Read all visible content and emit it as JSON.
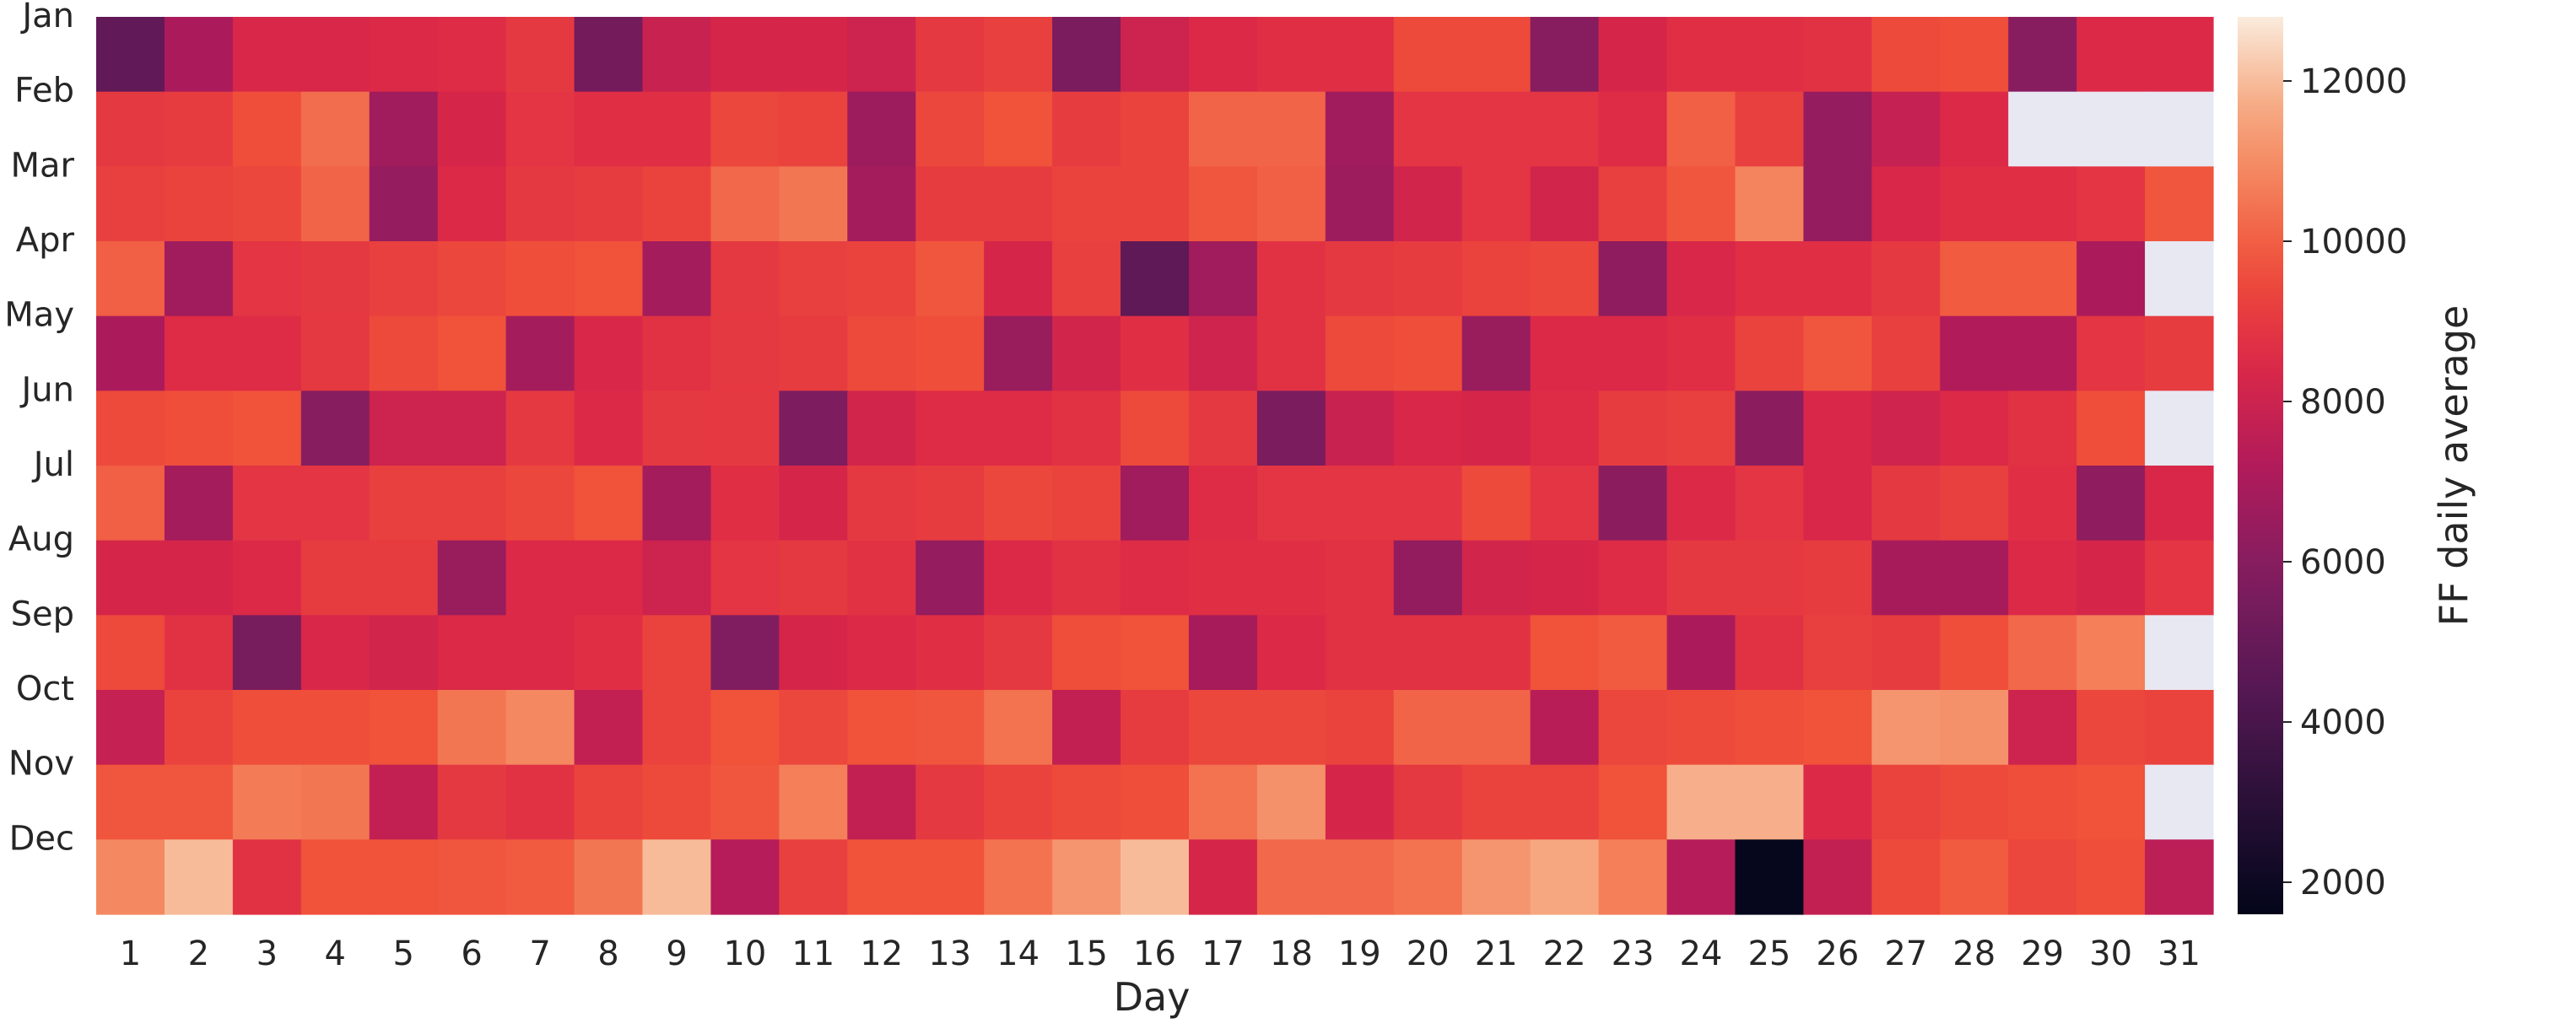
{
  "chart_data": {
    "type": "heatmap",
    "title": "",
    "xlabel": "Day",
    "ylabel": "",
    "colorbar_label": "FF daily average",
    "colorbar_ticks": [
      2000,
      4000,
      6000,
      8000,
      10000,
      12000
    ],
    "value_range": [
      1600,
      12800
    ],
    "missing_color": "#e8e8f2",
    "colormap": "rocket",
    "y_categories": [
      "Jan",
      "Feb",
      "Mar",
      "Apr",
      "May",
      "Jun",
      "Jul",
      "Aug",
      "Sep",
      "Oct",
      "Nov",
      "Dec"
    ],
    "x_categories": [
      "1",
      "2",
      "3",
      "4",
      "5",
      "6",
      "7",
      "8",
      "9",
      "10",
      "11",
      "12",
      "13",
      "14",
      "15",
      "16",
      "17",
      "18",
      "19",
      "20",
      "21",
      "22",
      "23",
      "24",
      "25",
      "26",
      "27",
      "28",
      "29",
      "30",
      "31"
    ],
    "values": [
      [
        4800,
        7000,
        8400,
        8400,
        8500,
        8600,
        9000,
        5400,
        7900,
        8300,
        8300,
        8000,
        9000,
        9200,
        5600,
        8000,
        8500,
        8700,
        8700,
        9500,
        9500,
        6000,
        8300,
        8700,
        8700,
        8800,
        9500,
        9600,
        6000,
        8500,
        8500
      ],
      [
        9000,
        9100,
        9600,
        10300,
        6700,
        8300,
        8900,
        8700,
        8700,
        9400,
        9300,
        6600,
        9400,
        9700,
        9100,
        9300,
        10100,
        10100,
        6700,
        8900,
        8900,
        8900,
        8600,
        10000,
        9200,
        6400,
        7800,
        8500,
        null,
        null,
        null
      ],
      [
        9200,
        9300,
        9400,
        10100,
        6400,
        8500,
        9000,
        9100,
        9300,
        10200,
        10500,
        6800,
        9100,
        9100,
        9300,
        9300,
        9800,
        10000,
        6600,
        8200,
        8900,
        8200,
        9200,
        9800,
        10800,
        6400,
        8400,
        8700,
        8700,
        8900,
        9800
      ],
      [
        10000,
        6700,
        8900,
        9000,
        9200,
        9400,
        9600,
        9700,
        6800,
        9000,
        9200,
        9300,
        9800,
        8300,
        9200,
        4700,
        6700,
        8800,
        9000,
        9100,
        9300,
        9400,
        6200,
        8400,
        8700,
        8700,
        9000,
        9900,
        9900,
        7000,
        null
      ],
      [
        7000,
        8600,
        8600,
        9000,
        9500,
        9700,
        6800,
        8400,
        8800,
        9000,
        9100,
        9500,
        9600,
        6500,
        8200,
        8700,
        8100,
        8800,
        9500,
        9600,
        6500,
        8500,
        8500,
        8700,
        9300,
        9800,
        9200,
        7200,
        7200,
        8900,
        9100
      ],
      [
        9500,
        9600,
        9700,
        6000,
        8000,
        8000,
        9000,
        8500,
        9000,
        9000,
        5700,
        8200,
        8600,
        8600,
        8800,
        9500,
        9000,
        5600,
        7900,
        8400,
        8300,
        8600,
        9100,
        9200,
        6100,
        8400,
        8100,
        8500,
        8800,
        9600,
        null
      ],
      [
        10000,
        6800,
        8900,
        8900,
        9200,
        9200,
        9400,
        9700,
        6800,
        8700,
        8300,
        9000,
        9100,
        9400,
        9300,
        6700,
        8600,
        8900,
        8900,
        8900,
        9500,
        8900,
        6100,
        8500,
        8900,
        8400,
        9000,
        9200,
        8700,
        6200,
        8400
      ],
      [
        8300,
        8300,
        8500,
        9100,
        9100,
        6500,
        8500,
        8500,
        8000,
        8900,
        9000,
        8800,
        6400,
        8500,
        8800,
        8600,
        8700,
        8700,
        8800,
        6300,
        8200,
        8300,
        8600,
        9000,
        9000,
        9100,
        6900,
        6900,
        8500,
        8300,
        8900
      ],
      [
        9500,
        8800,
        5500,
        8400,
        8200,
        8500,
        8500,
        8700,
        9300,
        5800,
        8300,
        8500,
        8700,
        9000,
        9600,
        9700,
        6900,
        8500,
        8800,
        8800,
        8800,
        9700,
        9900,
        7000,
        8800,
        9200,
        9100,
        9600,
        10200,
        10700,
        null
      ],
      [
        7800,
        9300,
        9600,
        9600,
        9700,
        10500,
        10900,
        7700,
        9300,
        9700,
        9400,
        9700,
        9800,
        10400,
        7700,
        9100,
        9400,
        9400,
        9300,
        10100,
        10100,
        7400,
        9400,
        9500,
        9600,
        9700,
        11200,
        11100,
        8000,
        9400,
        9300
      ],
      [
        9800,
        9800,
        10600,
        10500,
        7700,
        9000,
        8800,
        9300,
        9500,
        9800,
        10700,
        7700,
        9000,
        9300,
        9500,
        9600,
        10400,
        11100,
        8300,
        9000,
        9300,
        9300,
        9700,
        11800,
        11800,
        8500,
        9300,
        9500,
        9600,
        9700,
        null
      ],
      [
        10900,
        12000,
        8800,
        9700,
        9700,
        9800,
        9900,
        10500,
        12000,
        7300,
        9200,
        9700,
        9700,
        10400,
        11200,
        12000,
        8300,
        10200,
        10200,
        10400,
        11200,
        11600,
        10700,
        7300,
        1700,
        7700,
        9500,
        9900,
        9400,
        9600,
        7500
      ]
    ]
  }
}
